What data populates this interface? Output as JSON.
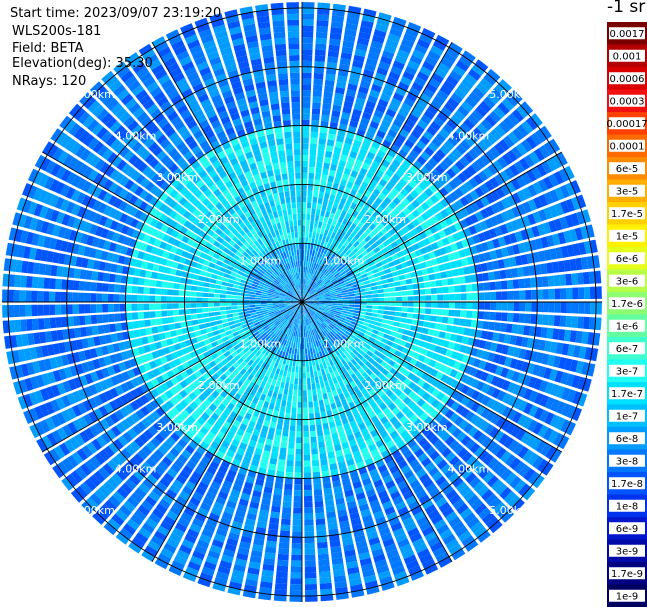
{
  "info": {
    "start_time": "Start time: 2023/09/07 23:19:20",
    "device": "WLS200s-181",
    "field": "Field: BETA",
    "elevation": "Elevation(deg): 35.30",
    "nrays": "NRays: 120"
  },
  "chart_data": {
    "type": "heatmap",
    "projection": "polar PPI scan",
    "field": "BETA",
    "elevation_deg": 35.3,
    "n_rays": 120,
    "range_rings_km": [
      1,
      2,
      3,
      4,
      5
    ],
    "range_ring_labels": [
      "1.00km",
      "2.00km",
      "3.00km",
      "4.00km",
      "5.00km"
    ],
    "max_range_km": 5.1,
    "azimuth_spokes_deg": [
      0,
      30,
      60,
      90,
      120,
      150,
      180,
      210,
      240,
      270,
      300,
      330
    ],
    "units_label": "-1 sr",
    "colorbar": {
      "scale": "log",
      "ticks": [
        "0.0017",
        "0.001",
        "0.0006",
        "0.0003",
        "0.00017",
        "0.0001",
        "6e-5",
        "3e-5",
        "1.7e-5",
        "1e-5",
        "6e-6",
        "3e-6",
        "1.7e-6",
        "1e-6",
        "6e-7",
        "3e-7",
        "1.7e-7",
        "1e-7",
        "6e-8",
        "3e-8",
        "1.7e-8",
        "1e-8",
        "6e-9",
        "3e-9",
        "1.7e-9",
        "1e-9"
      ],
      "colors": [
        "#7a0000",
        "#b30000",
        "#d80000",
        "#f01010",
        "#ff4000",
        "#ff6a00",
        "#ff8c00",
        "#ffad00",
        "#ffd000",
        "#fff000",
        "#e6ff1a",
        "#b8ff48",
        "#8cff73",
        "#63ffa0",
        "#3fffcf",
        "#20fff0",
        "#00e0ff",
        "#00bfff",
        "#009cff",
        "#0078ff",
        "#0055ff",
        "#0033ee",
        "#0018cc",
        "#000aa8",
        "#000080",
        "#000060"
      ]
    },
    "typical_values": {
      "inner_range_km": [
        0,
        1
      ],
      "inner_typical_beta": "6e-8",
      "mid_range_km": [
        1,
        3
      ],
      "mid_typical_beta": "1.7e-7",
      "outer_range_km": [
        3,
        5.1
      ],
      "outer_typical_beta": "3e-8"
    }
  }
}
